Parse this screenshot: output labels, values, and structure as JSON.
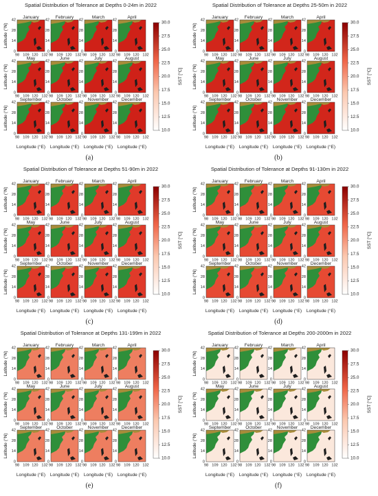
{
  "panels": [
    {
      "title": "Spatial Distribution of Tolerance at Depths 0-24m in 2022",
      "caption": "(a)",
      "sea_color": "#cf2118"
    },
    {
      "title": "Spatial Distribution of Tolerance at Depths 25-50m in 2022",
      "caption": "(b)",
      "sea_color": "#d2261b"
    },
    {
      "title": "Spatial Distribution of Tolerance at Depths 51-90m in 2022",
      "caption": "(c)",
      "sea_color": "#e03a2a"
    },
    {
      "title": "Spatial Distribution of Tolerance at Depths 91-130m in 2022",
      "caption": "(d)",
      "sea_color": "#e64a33"
    },
    {
      "title": "Spatial Distribution of Tolerance at Depths 131-199m in 2022",
      "caption": "(e)",
      "sea_color": "#ee7e60"
    },
    {
      "title": "Spatial Distribution of Tolerance at Depths 200-2000m in 2022",
      "caption": "(f)",
      "sea_color": "#fbe8dc"
    }
  ],
  "months": [
    "January",
    "February",
    "March",
    "April",
    "May",
    "June",
    "July",
    "August",
    "September",
    "October",
    "November",
    "December"
  ],
  "y_axis_label": "Latitude (°N)",
  "x_axis_label": "Longitude (°E)",
  "lat_ticks": [
    42,
    28,
    14,
    0
  ],
  "lon_ticks": [
    98,
    109,
    120,
    132
  ],
  "colorbar": {
    "label": "SST [°C]",
    "ticks": [
      "30.0",
      "27.5",
      "25.0",
      "22.5",
      "20.0",
      "17.5",
      "15.0",
      "12.5",
      "10.0"
    ]
  }
}
